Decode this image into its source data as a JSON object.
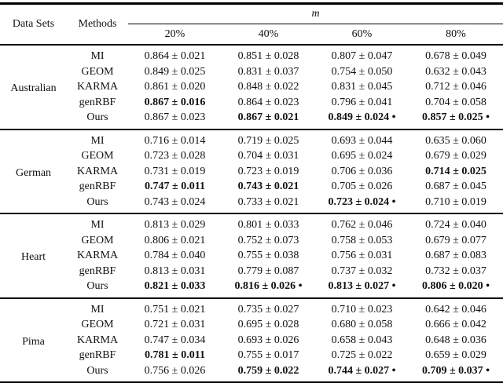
{
  "table": {
    "header": {
      "datasets": "Data Sets",
      "methods": "Methods",
      "m": "m",
      "percents": [
        "20%",
        "40%",
        "60%",
        "80%"
      ]
    },
    "groups": [
      {
        "dataset": "Australian",
        "rows": [
          {
            "method": "MI",
            "values": [
              "0.864 ± 0.021",
              "0.851 ± 0.028",
              "0.807 ± 0.047",
              "0.678 ± 0.049"
            ],
            "bold": [
              false,
              false,
              false,
              false
            ]
          },
          {
            "method": "GEOM",
            "values": [
              "0.849 ± 0.025",
              "0.831 ± 0.037",
              "0.754 ± 0.050",
              "0.632 ± 0.043"
            ],
            "bold": [
              false,
              false,
              false,
              false
            ]
          },
          {
            "method": "KARMA",
            "values": [
              "0.861 ± 0.020",
              "0.848 ± 0.022",
              "0.831 ± 0.045",
              "0.712 ± 0.046"
            ],
            "bold": [
              false,
              false,
              false,
              false
            ]
          },
          {
            "method": "genRBF",
            "values": [
              "0.867 ± 0.016",
              "0.864 ± 0.023",
              "0.796 ± 0.041",
              "0.704 ± 0.058"
            ],
            "bold": [
              true,
              false,
              false,
              false
            ]
          },
          {
            "method": "Ours",
            "values": [
              "0.867 ± 0.023",
              "0.867 ± 0.021",
              "0.849 ± 0.024 •",
              "0.857 ± 0.025 •"
            ],
            "bold": [
              false,
              true,
              true,
              true
            ]
          }
        ]
      },
      {
        "dataset": "German",
        "rows": [
          {
            "method": "MI",
            "values": [
              "0.716 ± 0.014",
              "0.719 ± 0.025",
              "0.693 ± 0.044",
              "0.635 ± 0.060"
            ],
            "bold": [
              false,
              false,
              false,
              false
            ]
          },
          {
            "method": "GEOM",
            "values": [
              "0.723 ± 0.028",
              "0.704 ± 0.031",
              "0.695 ± 0.024",
              "0.679 ± 0.029"
            ],
            "bold": [
              false,
              false,
              false,
              false
            ]
          },
          {
            "method": "KARMA",
            "values": [
              "0.731 ± 0.019",
              "0.723 ± 0.019",
              "0.706 ± 0.036",
              "0.714 ± 0.025"
            ],
            "bold": [
              false,
              false,
              false,
              true
            ]
          },
          {
            "method": "genRBF",
            "values": [
              "0.747 ± 0.011",
              "0.743 ± 0.021",
              "0.705 ± 0.026",
              "0.687 ± 0.045"
            ],
            "bold": [
              true,
              true,
              false,
              false
            ]
          },
          {
            "method": "Ours",
            "values": [
              "0.743 ± 0.024",
              "0.733 ± 0.021",
              "0.723 ± 0.024 •",
              "0.710 ± 0.019"
            ],
            "bold": [
              false,
              false,
              true,
              false
            ]
          }
        ]
      },
      {
        "dataset": "Heart",
        "rows": [
          {
            "method": "MI",
            "values": [
              "0.813 ± 0.029",
              "0.801 ± 0.033",
              "0.762 ± 0.046",
              "0.724 ± 0.040"
            ],
            "bold": [
              false,
              false,
              false,
              false
            ]
          },
          {
            "method": "GEOM",
            "values": [
              "0.806 ± 0.021",
              "0.752 ± 0.073",
              "0.758 ± 0.053",
              "0.679 ± 0.077"
            ],
            "bold": [
              false,
              false,
              false,
              false
            ]
          },
          {
            "method": "KARMA",
            "values": [
              "0.784 ± 0.040",
              "0.755 ± 0.038",
              "0.756 ± 0.031",
              "0.687 ± 0.083"
            ],
            "bold": [
              false,
              false,
              false,
              false
            ]
          },
          {
            "method": "genRBF",
            "values": [
              "0.813 ± 0.031",
              "0.779 ± 0.087",
              "0.737 ± 0.032",
              "0.732 ± 0.037"
            ],
            "bold": [
              false,
              false,
              false,
              false
            ]
          },
          {
            "method": "Ours",
            "values": [
              "0.821 ± 0.033",
              "0.816 ± 0.026 •",
              "0.813 ± 0.027 •",
              "0.806 ± 0.020 •"
            ],
            "bold": [
              true,
              true,
              true,
              true
            ]
          }
        ]
      },
      {
        "dataset": "Pima",
        "rows": [
          {
            "method": "MI",
            "values": [
              "0.751 ± 0.021",
              "0.735 ± 0.027",
              "0.710 ± 0.023",
              "0.642 ± 0.046"
            ],
            "bold": [
              false,
              false,
              false,
              false
            ]
          },
          {
            "method": "GEOM",
            "values": [
              "0.721 ± 0.031",
              "0.695 ± 0.028",
              "0.680 ± 0.058",
              "0.666 ± 0.042"
            ],
            "bold": [
              false,
              false,
              false,
              false
            ]
          },
          {
            "method": "KARMA",
            "values": [
              "0.747 ± 0.034",
              "0.693 ± 0.026",
              "0.658 ± 0.043",
              "0.648 ± 0.036"
            ],
            "bold": [
              false,
              false,
              false,
              false
            ]
          },
          {
            "method": "genRBF",
            "values": [
              "0.781 ± 0.011",
              "0.755 ± 0.017",
              "0.725 ± 0.022",
              "0.659 ± 0.029"
            ],
            "bold": [
              true,
              false,
              false,
              false
            ]
          },
          {
            "method": "Ours",
            "values": [
              "0.756 ± 0.026",
              "0.759 ± 0.022",
              "0.744 ± 0.027 •",
              "0.709 ± 0.037 •"
            ],
            "bold": [
              false,
              true,
              true,
              true
            ]
          }
        ]
      }
    ]
  }
}
